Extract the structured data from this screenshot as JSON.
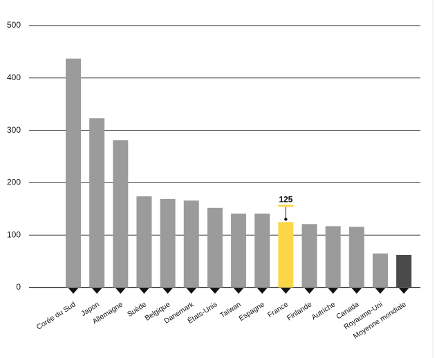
{
  "chart_data": {
    "type": "bar",
    "categories": [
      "Corée du Sud",
      "Japon",
      "Allemagne",
      "Suède",
      "Belgique",
      "Danemark",
      "États-Unis",
      "Taïwan",
      "Espagne",
      "France",
      "Finlande",
      "Autriche",
      "Canada",
      "Royaume-Uni",
      "Moyenne mondiale"
    ],
    "values": [
      437,
      323,
      281,
      174,
      169,
      166,
      152,
      141,
      141,
      125,
      121,
      117,
      116,
      65,
      62
    ],
    "colors": [
      "#9b9b9b",
      "#9b9b9b",
      "#9b9b9b",
      "#9b9b9b",
      "#9b9b9b",
      "#9b9b9b",
      "#9b9b9b",
      "#9b9b9b",
      "#9b9b9b",
      "#fbd748",
      "#9b9b9b",
      "#9b9b9b",
      "#9b9b9b",
      "#9b9b9b",
      "#4a4a4a"
    ],
    "value_label_categories": [
      "France"
    ],
    "ylim": [
      0,
      500
    ],
    "yticks": [
      0,
      100,
      200,
      300,
      400,
      500
    ],
    "grid": true
  }
}
